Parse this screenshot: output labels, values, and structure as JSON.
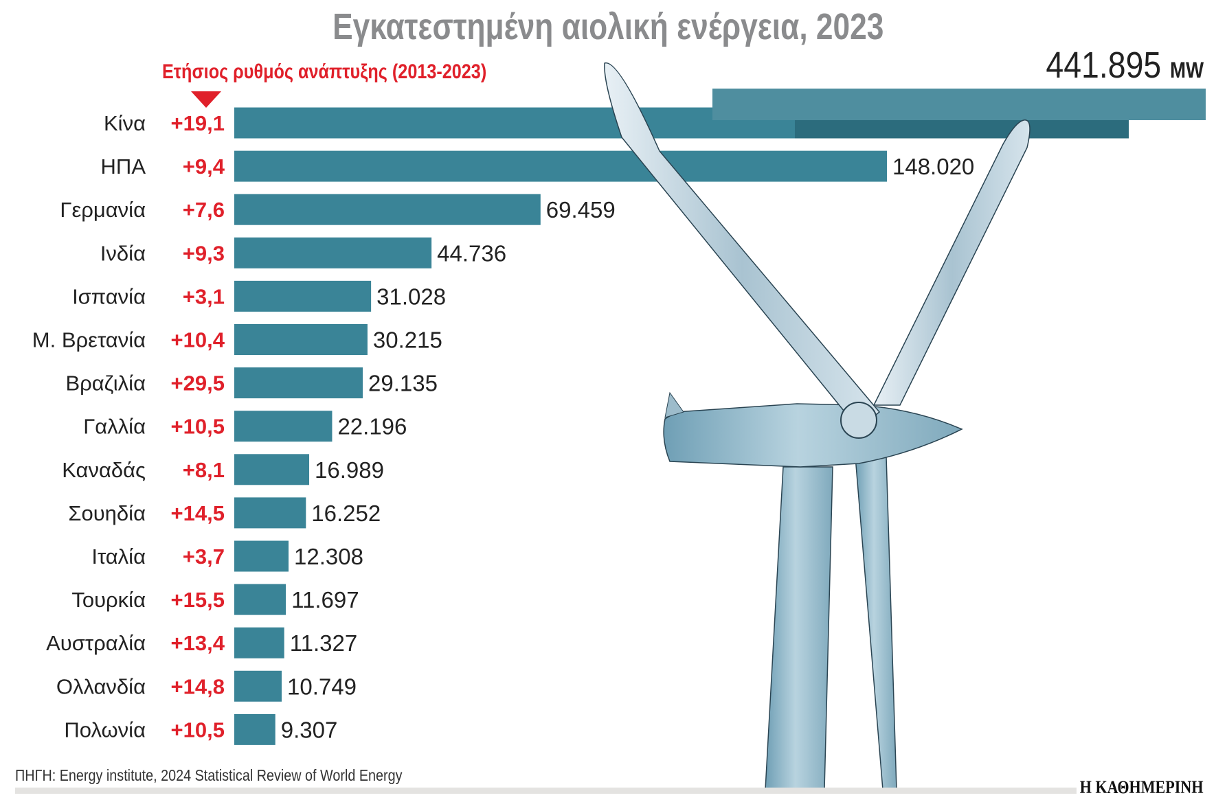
{
  "title": "Εγκατεστημένη αιολική ενέργεια, 2023",
  "subtitle": "Ετήσιος ρυθμός ανάπτυξης (2013-2023)",
  "total": {
    "value": "441.895",
    "unit": "MW"
  },
  "source": "ΠΗΓΗ: Energy institute, 2024 Statistical Review of World Energy",
  "logo": "Η ΚΑΘΗΜΕΡΙΝΗ",
  "colors": {
    "bar": "#3a8497",
    "growth": "#e0202a",
    "title": "#8a8b8d"
  },
  "chart_data": {
    "type": "bar",
    "orientation": "horizontal",
    "title": "Εγκατεστημένη αιολική ενέργεια, 2023",
    "unit": "MW",
    "categories": [
      "Κίνα",
      "ΗΠΑ",
      "Γερμανία",
      "Ινδία",
      "Ισπανία",
      "Μ. Βρετανία",
      "Βραζιλία",
      "Γαλλία",
      "Καναδάς",
      "Σουηδία",
      "Ιταλία",
      "Τουρκία",
      "Αυστραλία",
      "Ολλανδία",
      "Πολωνία"
    ],
    "values": [
      441895,
      148020,
      69459,
      44736,
      31028,
      30215,
      29135,
      22196,
      16989,
      16252,
      12308,
      11697,
      11327,
      10749,
      9307
    ],
    "value_labels": [
      "441.895",
      "148.020",
      "69.459",
      "44.736",
      "31.028",
      "30.215",
      "29.135",
      "22.196",
      "16.989",
      "16.252",
      "12.308",
      "11.697",
      "11.327",
      "10.749",
      "9.307"
    ],
    "growth_series_name": "Ετήσιος ρυθμός ανάπτυξης (2013-2023)",
    "growth_labels": [
      "+19,1",
      "+9,4",
      "+7,6",
      "+9,3",
      "+3,1",
      "+10,4",
      "+29,5",
      "+10,5",
      "+8,1",
      "+14,5",
      "+3,7",
      "+15,5",
      "+13,4",
      "+14,8",
      "+10,5"
    ],
    "growth": [
      19.1,
      9.4,
      7.6,
      9.3,
      3.1,
      10.4,
      29.5,
      10.5,
      8.1,
      14.5,
      3.7,
      15.5,
      13.4,
      14.8,
      10.5
    ],
    "broken_first_bar": true
  }
}
